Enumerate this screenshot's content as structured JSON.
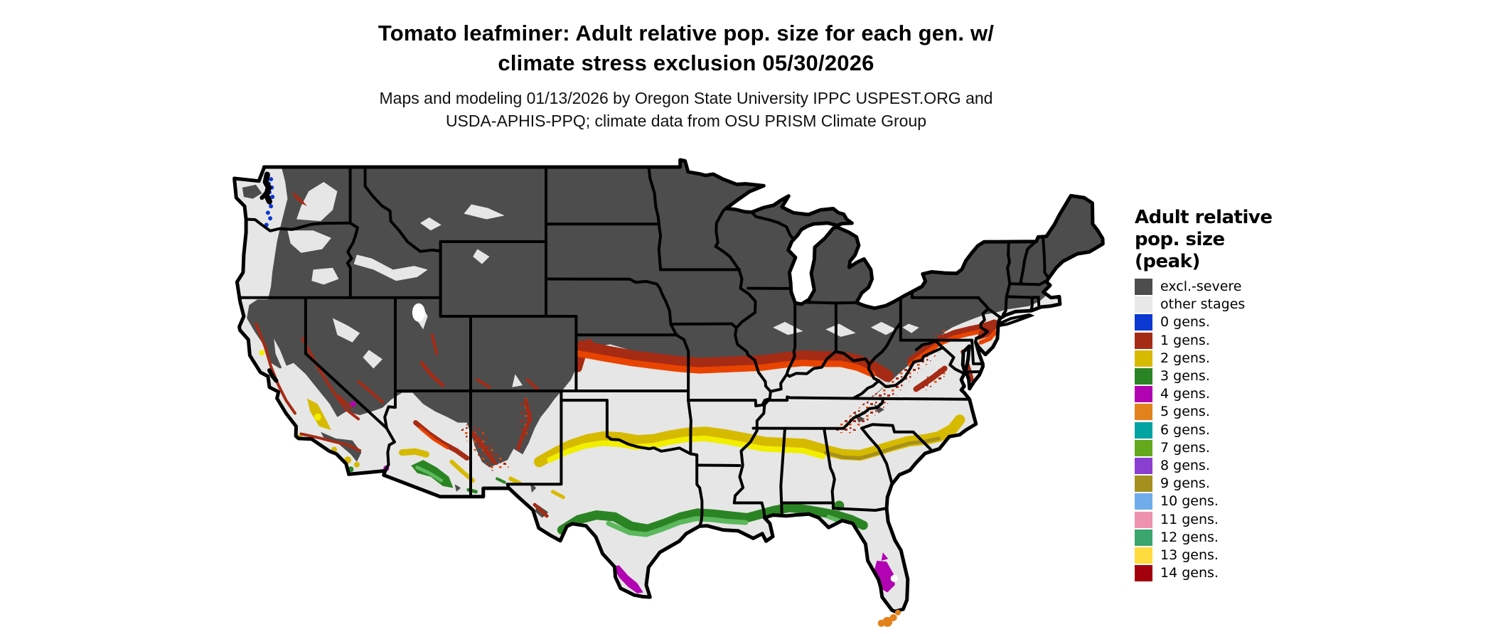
{
  "title": {
    "line1": "Tomato leafminer: Adult relative pop. size for each gen. w/",
    "line2": "climate stress exclusion 05/30/2026"
  },
  "subtitle": {
    "line1": "Maps and modeling 01/13/2026 by Oregon State University IPPC USPEST.ORG and",
    "line2": "USDA-APHIS-PPQ; climate data from OSU PRISM Climate Group"
  },
  "legend": {
    "title_lines": [
      "Adult relative",
      "pop. size",
      "(peak)"
    ],
    "entries": [
      {
        "label": "excl.-severe",
        "color": "#4d4d4d"
      },
      {
        "label": "other stages",
        "color": "#e8e8e8"
      },
      {
        "label": "0 gens.",
        "color": "#0b38d1"
      },
      {
        "label": "1 gens.",
        "color": "#a62b15"
      },
      {
        "label": "2 gens.",
        "color": "#d6ba00"
      },
      {
        "label": "3 gens.",
        "color": "#2b8423"
      },
      {
        "label": "4 gens.",
        "color": "#b203b2"
      },
      {
        "label": "5 gens.",
        "color": "#e2821c"
      },
      {
        "label": "6 gens.",
        "color": "#02a3a3"
      },
      {
        "label": "7 gens.",
        "color": "#64a81b"
      },
      {
        "label": "8 gens.",
        "color": "#8a3fd1"
      },
      {
        "label": "9 gens.",
        "color": "#a3901f"
      },
      {
        "label": "10 gens.",
        "color": "#70aceb"
      },
      {
        "label": "11 gens.",
        "color": "#ee92ae"
      },
      {
        "label": "12 gens.",
        "color": "#3ba56e"
      },
      {
        "label": "13 gens.",
        "color": "#fedc3d"
      },
      {
        "label": "14 gens.",
        "color": "#a3000d"
      }
    ]
  },
  "map": {
    "colors": {
      "background": "#ffffff",
      "land_other_stages": "#e6e6e6",
      "excluded_dark": "#4d4d4d",
      "state_border": "#000000",
      "water_white": "#ffffff",
      "band1_bright_orange": "#e84400",
      "band2_bright_yellow": "#f2ee00",
      "band2_dark_gold": "#a8901c",
      "band3_light_green": "#5cb85c",
      "band4_dark_magenta": "#8e0096"
    }
  }
}
